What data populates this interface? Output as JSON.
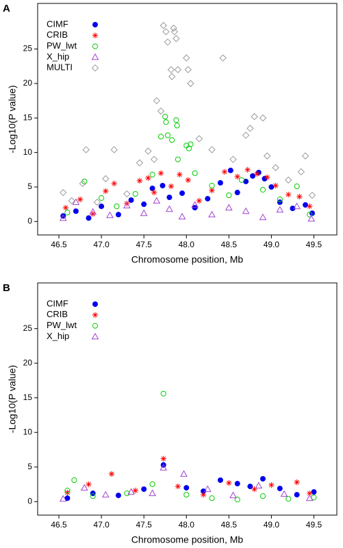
{
  "chart_data": [
    {
      "type": "scatter",
      "label": "A",
      "x_label": "Chromosome position, Mb",
      "y_label": "-Log10(P value)",
      "xlim": [
        46.25,
        49.77
      ],
      "ylim": [
        -1.95,
        31.6
      ],
      "xticks": [
        46.5,
        {
          "value": 47,
          "label": "47.0"
        },
        47.5,
        {
          "value": 48,
          "label": "48.0"
        },
        48.5,
        {
          "value": 49,
          "label": "49.0"
        },
        49.5
      ],
      "yticks": [
        0,
        5,
        10,
        15,
        20,
        25
      ],
      "legend": "top-left",
      "series": [
        {
          "name": "CIMF",
          "color": "#0000ee",
          "marker": "circle-filled",
          "x": [
            46.55,
            46.7,
            46.85,
            47.0,
            47.2,
            47.35,
            47.5,
            47.6,
            47.72,
            47.8,
            47.95,
            48.1,
            48.25,
            48.4,
            48.52,
            48.6,
            48.7,
            48.78,
            48.85,
            48.92,
            49.0,
            49.1,
            49.25,
            49.4,
            49.48
          ],
          "values": [
            0.8,
            1.5,
            0.5,
            2.2,
            1.0,
            3.1,
            2.5,
            4.8,
            5.2,
            3.5,
            4.1,
            2.0,
            3.3,
            5.6,
            7.4,
            4.2,
            5.8,
            6.6,
            7.1,
            6.2,
            5.0,
            2.8,
            1.9,
            2.4,
            1.2
          ]
        },
        {
          "name": "CRIB",
          "color": "#ff0000",
          "marker": "asterisk",
          "x": [
            46.58,
            46.75,
            46.9,
            47.05,
            47.15,
            47.3,
            47.45,
            47.55,
            47.62,
            47.7,
            47.82,
            47.92,
            48.02,
            48.15,
            48.3,
            48.45,
            48.6,
            48.72,
            48.83,
            48.95,
            49.05,
            49.2,
            49.33,
            49.45
          ],
          "values": [
            2.0,
            3.2,
            1.1,
            4.4,
            5.5,
            2.6,
            5.9,
            6.3,
            4.2,
            7.0,
            5.1,
            6.8,
            6.0,
            3.0,
            4.5,
            7.2,
            6.5,
            7.5,
            6.9,
            6.4,
            5.2,
            3.9,
            3.6,
            2.2
          ]
        },
        {
          "name": "PW_lwt",
          "color": "#00cc00",
          "marker": "circle-open",
          "x": [
            46.6,
            46.8,
            47.0,
            47.18,
            47.4,
            47.6,
            47.7,
            47.75,
            47.76,
            47.78,
            47.83,
            47.88,
            47.89,
            47.9,
            48.0,
            48.03,
            48.05,
            48.1,
            48.3,
            48.5,
            48.65,
            48.9,
            49.1,
            49.3,
            49.45
          ],
          "values": [
            1.3,
            5.8,
            3.4,
            2.2,
            4.0,
            6.8,
            12.3,
            15.2,
            14.4,
            12.5,
            11.8,
            14.7,
            13.9,
            9.0,
            11.0,
            10.6,
            11.2,
            7.0,
            5.2,
            3.8,
            6.0,
            4.6,
            3.2,
            5.1,
            1.0
          ]
        },
        {
          "name": "X_hip",
          "color": "#a040d0",
          "marker": "triangle-open",
          "x": [
            46.55,
            46.7,
            46.9,
            47.1,
            47.3,
            47.5,
            47.65,
            47.8,
            47.95,
            48.1,
            48.3,
            48.5,
            48.7,
            48.9,
            49.1,
            49.3,
            49.47
          ],
          "values": [
            0.5,
            2.8,
            1.4,
            0.9,
            2.3,
            1.2,
            3.0,
            1.8,
            0.7,
            2.4,
            1.0,
            2.0,
            1.5,
            0.6,
            1.7,
            2.2,
            0.4
          ]
        },
        {
          "name": "MULTI",
          "color": "#999999",
          "marker": "diamond-open",
          "x": [
            46.55,
            46.65,
            46.78,
            46.82,
            46.95,
            47.05,
            47.15,
            47.3,
            47.45,
            47.55,
            47.62,
            47.65,
            47.7,
            47.73,
            47.76,
            47.78,
            47.82,
            47.83,
            47.85,
            47.86,
            47.88,
            47.9,
            48.0,
            48.02,
            48.05,
            48.15,
            48.3,
            48.43,
            48.55,
            48.7,
            48.75,
            48.8,
            48.9,
            48.95,
            49.05,
            49.2,
            49.35,
            49.4,
            49.48
          ],
          "values": [
            4.2,
            3.0,
            5.5,
            10.4,
            2.8,
            6.2,
            10.4,
            4.0,
            8.5,
            10.2,
            9.0,
            17.5,
            16.0,
            28.4,
            27.5,
            26.0,
            22.0,
            21.0,
            28.0,
            27.5,
            26.5,
            22.0,
            23.7,
            22.0,
            20.0,
            12.0,
            10.4,
            23.7,
            9.0,
            12.5,
            13.5,
            15.2,
            15.0,
            9.5,
            7.8,
            6.0,
            7.2,
            9.5,
            3.8
          ]
        }
      ]
    },
    {
      "type": "scatter",
      "label": "B",
      "x_label": "Chromosome position, Mb",
      "y_label": "-Log10(P value)",
      "xlim": [
        46.25,
        49.77
      ],
      "ylim": [
        -1.95,
        31.6
      ],
      "xticks": [
        46.5,
        {
          "value": 47,
          "label": "47.0"
        },
        47.5,
        {
          "value": 48,
          "label": "48.0"
        },
        48.5,
        {
          "value": 49,
          "label": "49.0"
        },
        49.5
      ],
      "yticks": [
        0,
        5,
        10,
        15,
        20,
        25
      ],
      "legend": "top-left",
      "series": [
        {
          "name": "CIMF",
          "color": "#0000ee",
          "marker": "circle-filled",
          "x": [
            46.6,
            46.9,
            47.2,
            47.5,
            47.73,
            48.0,
            48.2,
            48.4,
            48.6,
            48.75,
            48.9,
            49.1,
            49.3,
            49.5
          ],
          "values": [
            0.5,
            1.2,
            0.9,
            1.8,
            5.3,
            2.0,
            1.5,
            3.1,
            2.6,
            2.2,
            3.3,
            1.9,
            1.0,
            1.4
          ]
        },
        {
          "name": "CRIB",
          "color": "#ff0000",
          "marker": "asterisk",
          "x": [
            46.6,
            46.85,
            47.12,
            47.4,
            47.73,
            47.9,
            48.2,
            48.5,
            48.8,
            49.0,
            49.3,
            49.45
          ],
          "values": [
            1.3,
            2.5,
            4.0,
            1.6,
            6.2,
            2.2,
            1.0,
            2.7,
            1.8,
            2.4,
            2.8,
            1.2
          ]
        },
        {
          "name": "PW_lwt",
          "color": "#00cc00",
          "marker": "circle-open",
          "x": [
            46.6,
            46.68,
            46.9,
            47.3,
            47.6,
            47.73,
            48.0,
            48.3,
            48.6,
            48.9,
            49.2,
            49.5
          ],
          "values": [
            1.6,
            3.1,
            0.8,
            1.2,
            2.5,
            15.6,
            1.0,
            0.5,
            0.3,
            0.8,
            0.4,
            0.6
          ]
        },
        {
          "name": "X_hip",
          "color": "#a040d0",
          "marker": "triangle-open",
          "x": [
            46.55,
            46.8,
            47.05,
            47.35,
            47.6,
            47.73,
            47.97,
            48.25,
            48.55,
            48.85,
            49.15,
            49.45
          ],
          "values": [
            0.4,
            2.0,
            1.0,
            1.4,
            1.2,
            4.9,
            4.0,
            1.8,
            0.9,
            2.3,
            1.1,
            0.5
          ]
        }
      ]
    }
  ]
}
